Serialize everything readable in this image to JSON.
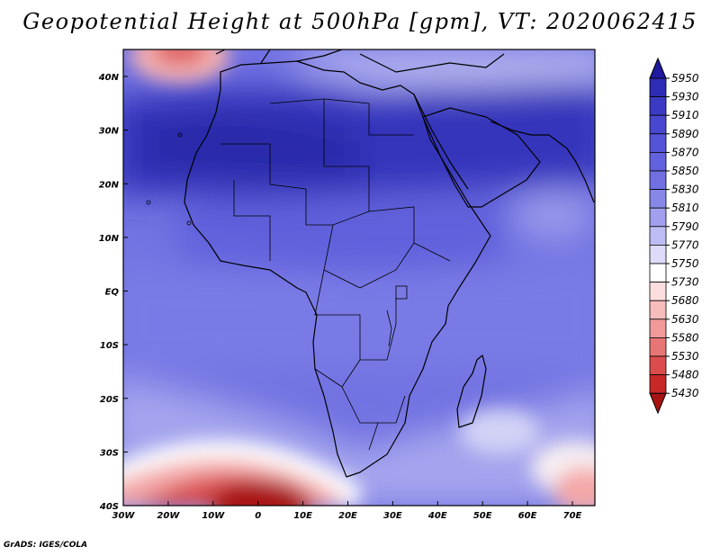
{
  "title": "Geopotential Height at 500hPa [gpm], VT: 2020062415",
  "credit": "GrADS: IGES/COLA",
  "lat_ticks": [
    "40N",
    "30N",
    "20N",
    "10N",
    "EQ",
    "10S",
    "20S",
    "30S",
    "40S"
  ],
  "lon_ticks": [
    "30W",
    "20W",
    "10W",
    "0",
    "10E",
    "20E",
    "30E",
    "40E",
    "50E",
    "60E",
    "70E"
  ],
  "colorbar": {
    "levels": [
      "5950",
      "5930",
      "5910",
      "5890",
      "5870",
      "5850",
      "5830",
      "5810",
      "5790",
      "5770",
      "5750",
      "5730",
      "5680",
      "5630",
      "5580",
      "5530",
      "5480",
      "5430"
    ],
    "colors": [
      "#1f1aa0",
      "#2e2bb4",
      "#3a3ac4",
      "#4747cf",
      "#5454d8",
      "#6262de",
      "#7070e2",
      "#8787e8",
      "#a0a0ee",
      "#bdbdf4",
      "#dcdcfa",
      "#ffffff",
      "#fcdede",
      "#f7bcbc",
      "#f09a9a",
      "#e77575",
      "#db4d4d",
      "#c82828",
      "#a81212"
    ]
  },
  "map": {
    "colors": {
      "deep_blue": "#3434bc",
      "mid_blue": "#6060dc",
      "light_blue": "#7a7ae6",
      "pale_blue": "#b8b8f2",
      "white": "#ffffff",
      "pink": "#f4b0b0",
      "red": "#d84848",
      "dark_red": "#a81212",
      "land_border": "#000000"
    }
  }
}
